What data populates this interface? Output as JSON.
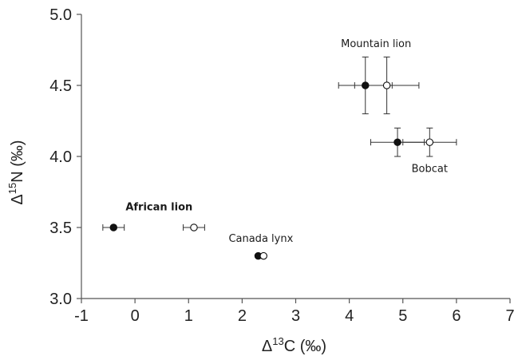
{
  "chart_data": {
    "type": "scatter",
    "title": "",
    "xlim": [
      -1,
      7
    ],
    "ylim": [
      3.0,
      5.0
    ],
    "x_ticks": [
      -1,
      0,
      1,
      2,
      3,
      4,
      5,
      6,
      7
    ],
    "y_ticks": [
      3.0,
      3.5,
      4.0,
      4.5,
      5.0
    ],
    "x_tick_labels": [
      "-1",
      "0",
      "1",
      "2",
      "3",
      "4",
      "5",
      "6",
      "7"
    ],
    "y_tick_labels": [
      "3.0",
      "3.5",
      "4.0",
      "4.5",
      "5.0"
    ],
    "xlabel": {
      "prefix": "Δ",
      "sup": "13",
      "suffix": "C (‰)"
    },
    "ylabel": {
      "prefix": "Δ",
      "sup": "15",
      "suffix": "N (‰)"
    },
    "grid": false,
    "legend": "none",
    "series": [
      {
        "marker": "filled-circle",
        "color": "#111111",
        "points": [
          {
            "x": 4.3,
            "y": 4.5,
            "xerr": 0.5,
            "yerr": 0.2
          },
          {
            "x": 4.9,
            "y": 4.1,
            "xerr": 0.5,
            "yerr": 0.1
          },
          {
            "x": -0.4,
            "y": 3.5,
            "xerr": 0.2,
            "yerr": 0
          },
          {
            "x": 2.3,
            "y": 3.3,
            "xerr": 0,
            "yerr": 0
          }
        ]
      },
      {
        "marker": "open-circle",
        "color": "#111111",
        "points": [
          {
            "x": 4.7,
            "y": 4.5,
            "xerr": 0.6,
            "yerr": 0.2
          },
          {
            "x": 5.5,
            "y": 4.1,
            "xerr": 0.5,
            "yerr": 0.1
          },
          {
            "x": 1.1,
            "y": 3.5,
            "xerr": 0.2,
            "yerr": 0
          },
          {
            "x": 2.4,
            "y": 3.3,
            "xerr": 0,
            "yerr": 0
          }
        ]
      }
    ],
    "annotations": [
      {
        "text": "Mountain lion",
        "x": 4.5,
        "y": 4.77,
        "bold": false
      },
      {
        "text": "Bobcat",
        "x": 5.5,
        "y": 3.89,
        "bold": false
      },
      {
        "text": "African lion",
        "x": 0.45,
        "y": 3.62,
        "bold": true
      },
      {
        "text": "Canada lynx",
        "x": 2.35,
        "y": 3.4,
        "bold": false
      }
    ]
  }
}
